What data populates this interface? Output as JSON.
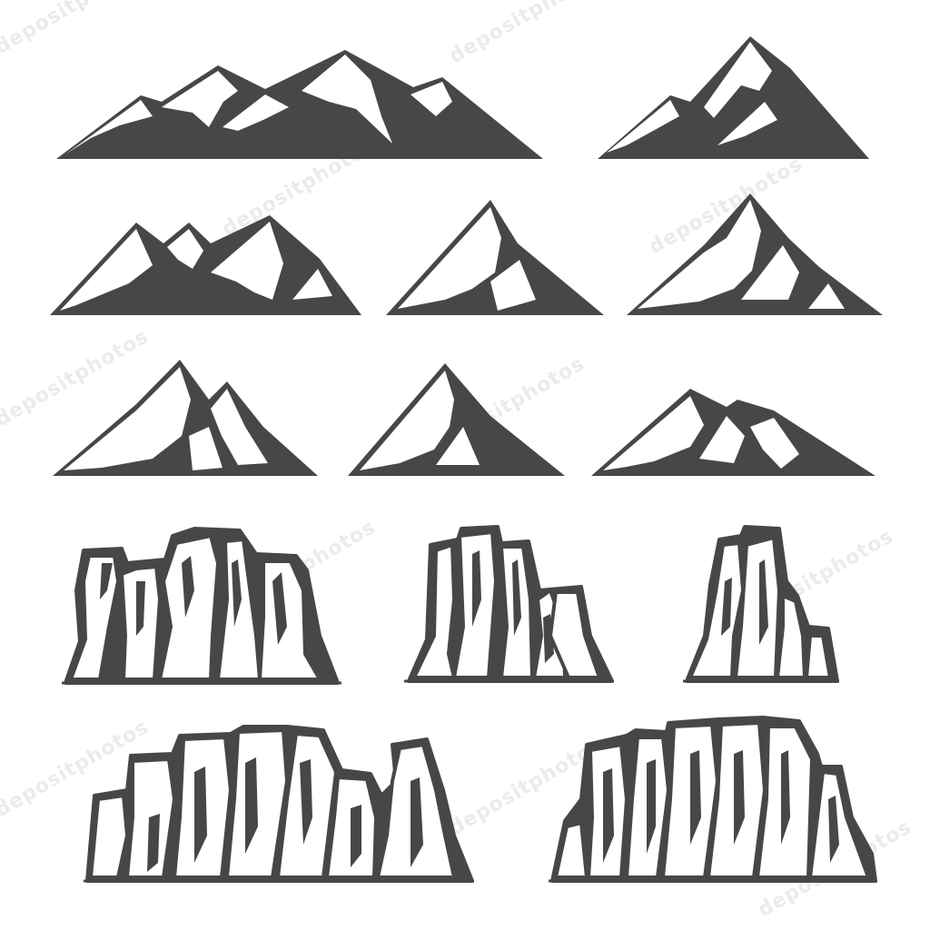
{
  "palette": {
    "ink": "#474747",
    "paper": "#ffffff",
    "watermark": "#e6e6e6"
  },
  "watermark": {
    "text": "depositphotos"
  },
  "artwork": {
    "mountains": [
      {
        "name": "mountain-range-wide"
      },
      {
        "name": "mountain-double-peak"
      },
      {
        "name": "mountain-triple-peak"
      },
      {
        "name": "mountain-single-peak"
      },
      {
        "name": "mountain-stepped-peak"
      },
      {
        "name": "mountain-twin-peak"
      },
      {
        "name": "mountain-pyramid-peak"
      },
      {
        "name": "mountain-low-ridge"
      }
    ],
    "cliffs": [
      {
        "name": "cliff-block-large"
      },
      {
        "name": "cliff-block-medium"
      },
      {
        "name": "cliff-block-small"
      },
      {
        "name": "cliff-range-left"
      },
      {
        "name": "cliff-range-right"
      }
    ]
  }
}
